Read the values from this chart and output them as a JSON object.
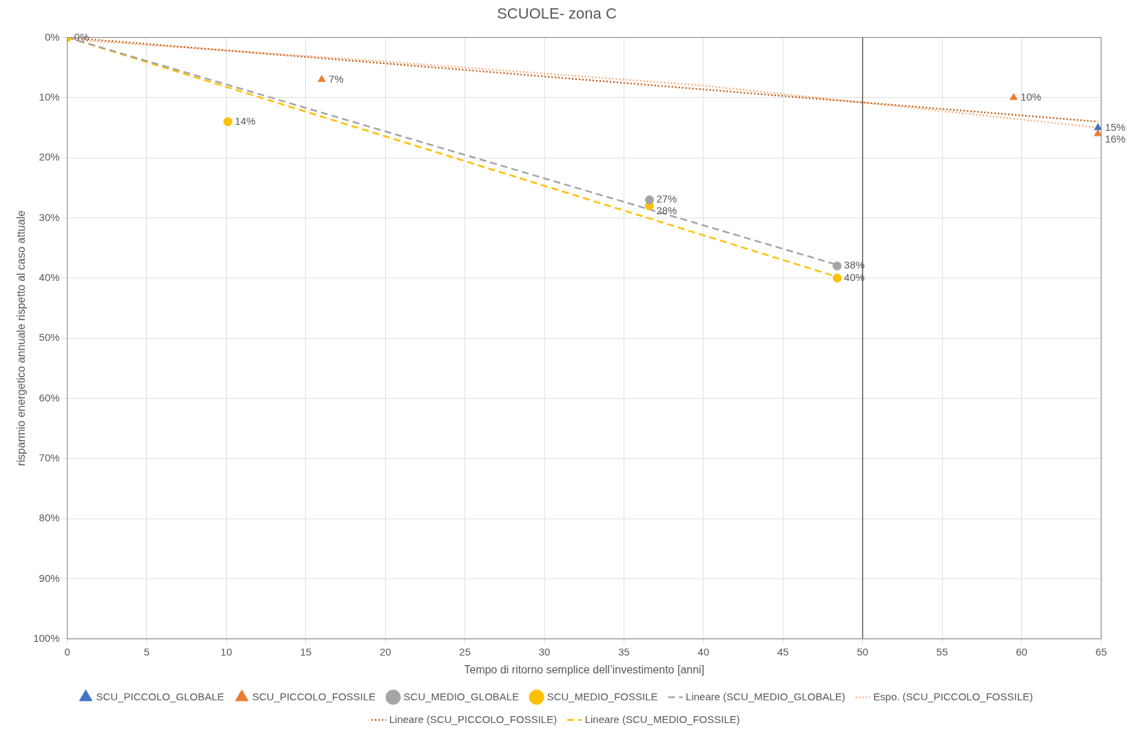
{
  "chart_data": {
    "type": "scatter",
    "title": "SCUOLE- zona C",
    "xlabel": "Tempo di ritorno semplice dell’investimento [anni]",
    "ylabel": "risparmio energetico annuale rispetto al caso attuale",
    "xlim": [
      0,
      65
    ],
    "xticks": [
      0,
      5,
      10,
      15,
      20,
      25,
      30,
      35,
      40,
      45,
      50,
      55,
      60,
      65
    ],
    "ylim": [
      100,
      0
    ],
    "yticks": [
      {
        "value": 0,
        "label": "0%"
      },
      {
        "value": 10,
        "label": "10%"
      },
      {
        "value": 20,
        "label": "20%"
      },
      {
        "value": 30,
        "label": "30%"
      },
      {
        "value": 40,
        "label": "40%"
      },
      {
        "value": 50,
        "label": "50%"
      },
      {
        "value": 60,
        "label": "60%"
      },
      {
        "value": 70,
        "label": "70%"
      },
      {
        "value": 80,
        "label": "80%"
      },
      {
        "value": 90,
        "label": "90%"
      },
      {
        "value": 100,
        "label": "100%"
      }
    ],
    "grid": true,
    "legend": "bottom",
    "ref_lines": [
      {
        "axis": "x",
        "value": 50,
        "color": "#595959"
      }
    ],
    "series": [
      {
        "name": "SCU_PICCOLO_GLOBALE",
        "type": "scatter",
        "marker": "triangle",
        "color": "#4472c4",
        "x": [
          64.8
        ],
        "values": [
          15
        ],
        "value_labels": [
          "15%"
        ]
      },
      {
        "name": "SCU_PICCOLO_FOSSILE",
        "type": "scatter",
        "marker": "triangle",
        "color": "#ed7d31",
        "x": [
          16,
          59.5,
          64.8
        ],
        "values": [
          7,
          10,
          16
        ],
        "value_labels": [
          "7%",
          "10%",
          "16%"
        ]
      },
      {
        "name": "SCU_MEDIO_GLOBALE",
        "type": "scatter",
        "marker": "circle",
        "color": "#a5a5a5",
        "x": [
          36.6,
          48.4
        ],
        "values": [
          27,
          38
        ],
        "value_labels": [
          "27%",
          "38%"
        ]
      },
      {
        "name": "SCU_MEDIO_FOSSILE",
        "type": "scatter",
        "marker": "circle",
        "color": "#ffc000",
        "x": [
          0,
          10.1,
          36.6,
          48.4
        ],
        "values": [
          0,
          14,
          28,
          40
        ],
        "value_labels": [
          "0%",
          "14%",
          "28%",
          "40%"
        ]
      },
      {
        "name": "Lineare (SCU_MEDIO_GLOBALE)",
        "type": "line",
        "marker": "none",
        "line_style": "dashed",
        "color": "#a5a5a5",
        "x": [
          0,
          48.4
        ],
        "values": [
          0,
          37.8
        ]
      },
      {
        "name": "Espo. (SCU_PICCOLO_FOSSILE)",
        "type": "line",
        "marker": "none",
        "line_style": "dotted",
        "color": "#f4b183",
        "x": [
          1,
          20,
          40,
          64.8
        ],
        "values": [
          0.5,
          4,
          8,
          15
        ]
      },
      {
        "name": "Lineare (SCU_PICCOLO_FOSSILE)",
        "type": "line",
        "marker": "none",
        "line_style": "dotted",
        "color": "#c55a11",
        "x": [
          0,
          64.8
        ],
        "values": [
          0,
          14
        ]
      },
      {
        "name": "Lineare (SCU_MEDIO_FOSSILE)",
        "type": "line",
        "marker": "none",
        "line_style": "dashed",
        "color": "#ffc000",
        "x": [
          0,
          48.4
        ],
        "values": [
          0,
          39.8
        ]
      }
    ]
  }
}
